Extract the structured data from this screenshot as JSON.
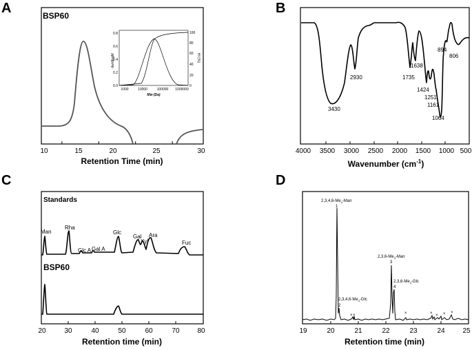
{
  "chart_data": [
    {
      "panel": "A",
      "type": "line",
      "series_label": "BSP60",
      "xlabel": "Retention Time (min)",
      "xticks": [
        "10",
        "15",
        "20",
        "25",
        "30"
      ],
      "xlim": [
        8,
        30
      ],
      "peak_x": 13.9,
      "inset": {
        "xlabel": "Mw (Da)",
        "ylabel_left": "dw/dlogM",
        "ylabel_right": "HI (%)",
        "xticks": [
          "1000",
          "10000",
          "100000",
          "1000000"
        ],
        "yticks_left": [
          "0.0",
          "0.2",
          "0.4",
          "0.6",
          "0.8"
        ],
        "yticks_right": [
          "0",
          "20",
          "40",
          "60",
          "80",
          "100"
        ]
      }
    },
    {
      "panel": "B",
      "type": "line",
      "xlabel": "Wavenumber (cm",
      "xlabel_sup": "-1",
      "xlabel_end": ")",
      "xticks": [
        "4000",
        "3500",
        "3000",
        "2500",
        "2000",
        "1500",
        "1000",
        "500"
      ],
      "xlim": [
        4000,
        500
      ],
      "peaks": [
        "3430",
        "2930",
        "1735",
        "1638",
        "1424",
        "1251",
        "1161",
        "1064",
        "894",
        "806"
      ]
    },
    {
      "panel": "C",
      "type": "line",
      "xlabel": "Retention time (min)",
      "xticks": [
        "20",
        "30",
        "40",
        "50",
        "60",
        "70",
        "80"
      ],
      "xlim": [
        20,
        80
      ],
      "series": [
        {
          "name": "Standards",
          "peaks": [
            "Man",
            "Rha",
            "Glc A",
            "Gal A",
            "Glc",
            "Gal",
            "Xyl",
            "Ara",
            "Fuc"
          ],
          "x": [
            22.5,
            31.5,
            37.2,
            42.0,
            49.3,
            56.7,
            59.8,
            62.5,
            73.5
          ]
        },
        {
          "name": "BSP60",
          "x": [
            22.5,
            49.3
          ]
        }
      ]
    },
    {
      "panel": "D",
      "type": "line",
      "xlabel": "Retention time (min)",
      "xticks": [
        "19",
        "20",
        "21",
        "22",
        "23",
        "24",
        "25"
      ],
      "xlim": [
        19,
        25
      ],
      "peaks": [
        {
          "id": "1",
          "name": "2,3,4,6-Me",
          "sub": "4",
          "suffix": "-Man",
          "x": 20.25
        },
        {
          "id": "2",
          "name": "2,3,4,6-Me",
          "sub": "4",
          "suffix": "-Glc",
          "x": 20.33
        },
        {
          "id": "3",
          "name": "2,3,6-Me",
          "sub": "3",
          "suffix": "-Man",
          "x": 22.22
        },
        {
          "id": "4",
          "name": "2,3,6-Me",
          "sub": "3",
          "suffix": "-Glc",
          "x": 22.32
        }
      ],
      "minor_marker": "×"
    }
  ],
  "panels": {
    "a": "A",
    "b": "B",
    "c": "C",
    "d": "D"
  }
}
